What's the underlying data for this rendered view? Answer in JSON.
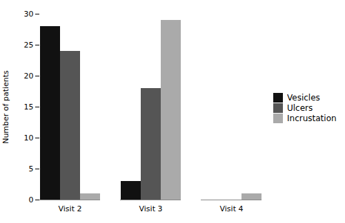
{
  "chart_data": {
    "type": "bar",
    "categories": [
      "Visit 2",
      "Visit 3",
      "Visit 4"
    ],
    "series": [
      {
        "name": "Vesicles",
        "color": "#111111",
        "values": [
          28,
          3,
          0
        ]
      },
      {
        "name": "Ulcers",
        "color": "#555555",
        "values": [
          24,
          18,
          0
        ]
      },
      {
        "name": "Incrustation",
        "color": "#aaaaaa",
        "values": [
          1,
          29,
          1
        ]
      }
    ],
    "ylabel": "Number of patients",
    "ylim": [
      0,
      30
    ],
    "yticks": [
      0,
      5,
      10,
      15,
      20,
      25,
      30
    ],
    "grid": false,
    "legend": "right"
  }
}
